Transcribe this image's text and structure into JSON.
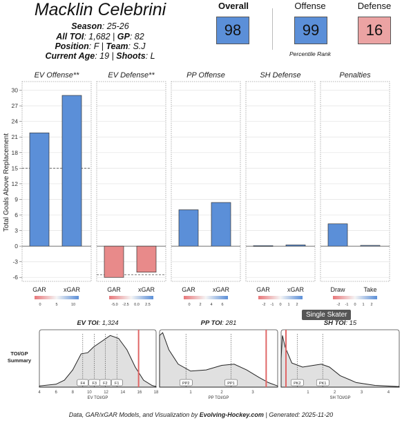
{
  "player": {
    "name": "Macklin Celebrini",
    "season_label": "Season",
    "season": "25-26",
    "toi_label": "All TOI",
    "toi": "1,682",
    "gp_label": "GP",
    "gp": "82",
    "position_label": "Position",
    "position": "F",
    "team_label": "Team",
    "team": "S.J",
    "age_label": "Current Age",
    "age": "19",
    "shoots_label": "Shoots",
    "shoots": "L"
  },
  "ranks": {
    "overall_label": "Overall",
    "overall": "98",
    "offense_label": "Offense",
    "offense": "99",
    "defense_label": "Defense",
    "defense": "16",
    "caption": "Percentile Rank",
    "colors": {
      "high": "#5b8fd8",
      "low": "#eba3a3"
    }
  },
  "chart_data": [
    {
      "type": "bar",
      "ylabel": "Total Goals Above Replacement",
      "ylim": [
        -6.5,
        31
      ],
      "yticks": [
        30,
        27,
        24,
        21,
        18,
        15,
        12,
        9,
        6,
        3,
        0,
        -3,
        -6
      ],
      "colors": {
        "positive": "#5b8fd8",
        "negative": "#e88a8a"
      },
      "panels": [
        {
          "title": "EV Offense**",
          "categories": [
            "GAR",
            "xGAR"
          ],
          "values": [
            21.8,
            29.0
          ],
          "reference": 15.0,
          "scale_ticks": [
            "0",
            "5",
            "10"
          ]
        },
        {
          "title": "EV Defense**",
          "categories": [
            "GAR",
            "xGAR"
          ],
          "values": [
            -6.0,
            -5.0
          ],
          "reference": -5.5,
          "scale_ticks": [
            "-5.0",
            "-2.5",
            "0.0",
            "2.5"
          ]
        },
        {
          "title": "PP Offense",
          "categories": [
            "GAR",
            "xGAR"
          ],
          "values": [
            7.0,
            8.4
          ],
          "scale_ticks": [
            "0",
            "2",
            "4",
            "6"
          ]
        },
        {
          "title": "SH Defense",
          "categories": [
            "GAR",
            "xGAR"
          ],
          "values": [
            0.1,
            0.25
          ],
          "scale_ticks": [
            "-2",
            "-1",
            "0",
            "1",
            "2"
          ]
        },
        {
          "title": "Penalties",
          "categories": [
            "Draw",
            "Take"
          ],
          "values": [
            4.3,
            0.15
          ],
          "scale_ticks": [
            "-2",
            "-1",
            "0",
            "1",
            "2"
          ]
        }
      ]
    },
    {
      "type": "area",
      "row_label": "TOI/GP Summary",
      "panels": [
        {
          "title_prefix": "EV TOI",
          "title_value": "1,324",
          "xlabel": "EV TOI/GP",
          "x_ticks": [
            4,
            6,
            8,
            10,
            12,
            14,
            16,
            18
          ],
          "xlim": [
            4,
            18
          ],
          "player_value": 15.9,
          "curve": [
            [
              4,
              0.02
            ],
            [
              6,
              0.05
            ],
            [
              7,
              0.12
            ],
            [
              8,
              0.3
            ],
            [
              9,
              0.58
            ],
            [
              9.8,
              0.6
            ],
            [
              10.5,
              0.7
            ],
            [
              11.5,
              0.8
            ],
            [
              12.5,
              0.9
            ],
            [
              13.5,
              0.85
            ],
            [
              14.5,
              0.65
            ],
            [
              15.5,
              0.35
            ],
            [
              16.5,
              0.12
            ],
            [
              17.5,
              0.03
            ],
            [
              18,
              0.01
            ]
          ],
          "markers": [
            {
              "label": "F4",
              "x": 9.2
            },
            {
              "label": "F3",
              "x": 10.6
            },
            {
              "label": "F2",
              "x": 11.9
            },
            {
              "label": "F1",
              "x": 13.3
            }
          ]
        },
        {
          "title_prefix": "PP TOI",
          "title_value": "281",
          "xlabel": "PP TOI/GP",
          "x_ticks": [
            1,
            2,
            3
          ],
          "xlim": [
            0,
            3.8
          ],
          "player_value": 3.43,
          "curve": [
            [
              0,
              0.9
            ],
            [
              0.1,
              0.95
            ],
            [
              0.3,
              0.65
            ],
            [
              0.6,
              0.4
            ],
            [
              1.0,
              0.28
            ],
            [
              1.5,
              0.3
            ],
            [
              2.0,
              0.38
            ],
            [
              2.4,
              0.4
            ],
            [
              2.8,
              0.3
            ],
            [
              3.2,
              0.17
            ],
            [
              3.5,
              0.08
            ],
            [
              3.8,
              0.02
            ]
          ],
          "markers": [
            {
              "label": "PP2",
              "x": 0.85
            },
            {
              "label": "PP1",
              "x": 2.3
            }
          ]
        },
        {
          "title_prefix": "SH TOI",
          "title_value": "15",
          "xlabel": "SH TOI/GP",
          "x_ticks": [
            1,
            2,
            3,
            4
          ],
          "xlim": [
            0,
            4.4
          ],
          "player_value": 0.18,
          "curve": [
            [
              0,
              0.5
            ],
            [
              0.05,
              0.9
            ],
            [
              0.15,
              0.7
            ],
            [
              0.4,
              0.42
            ],
            [
              0.8,
              0.35
            ],
            [
              1.2,
              0.38
            ],
            [
              1.5,
              0.4
            ],
            [
              1.8,
              0.35
            ],
            [
              2.2,
              0.2
            ],
            [
              2.8,
              0.08
            ],
            [
              3.5,
              0.03
            ],
            [
              4.4,
              0.01
            ]
          ],
          "markers": [
            {
              "label": "PK2",
              "x": 0.6
            },
            {
              "label": "PK1",
              "x": 1.55
            }
          ]
        }
      ]
    }
  ],
  "tooltip": "Single Skater",
  "footer": {
    "text": "Data, GAR/xGAR Models, and Visualization by",
    "brand": "Evolving-Hockey.com",
    "generated": "| Generated: 2025-11-20"
  }
}
